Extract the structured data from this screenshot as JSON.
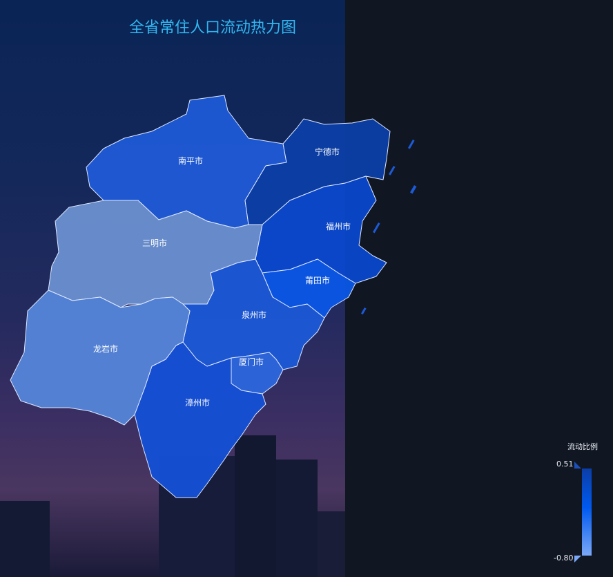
{
  "title": "全省常住人口流动热力图",
  "legend": {
    "title": "流动比例",
    "max": "0.51",
    "min": "-0.80",
    "colors": [
      "#0b3ea8",
      "#0059ee",
      "#7aa8f8"
    ]
  },
  "regions": [
    {
      "id": "nanping",
      "name": "南平市",
      "color": "#1f5ad6"
    },
    {
      "id": "ningde",
      "name": "宁德市",
      "color": "#0c3ea6"
    },
    {
      "id": "fuzhou",
      "name": "福州市",
      "color": "#0a48cc"
    },
    {
      "id": "sanming",
      "name": "三明市",
      "color": "#6b90d0"
    },
    {
      "id": "putian",
      "name": "莆田市",
      "color": "#0b56e6"
    },
    {
      "id": "quanzhou",
      "name": "泉州市",
      "color": "#1b58d6"
    },
    {
      "id": "xiamen",
      "name": "厦门市",
      "color": "#2c66dc"
    },
    {
      "id": "zhangzhou",
      "name": "漳州市",
      "color": "#1450d6"
    },
    {
      "id": "longyan",
      "name": "龙岩市",
      "color": "#5585d8"
    }
  ]
}
